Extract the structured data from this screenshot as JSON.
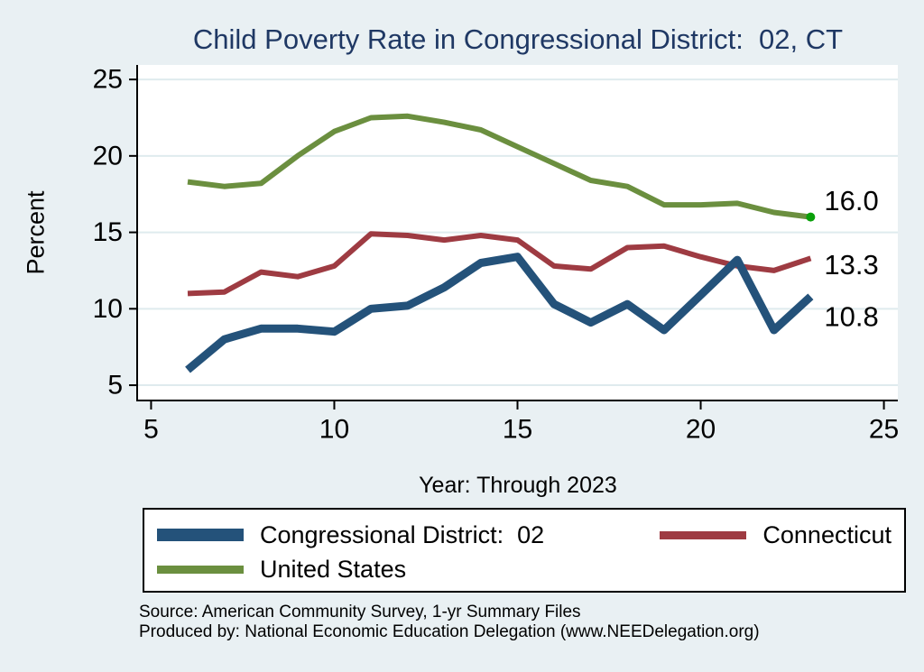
{
  "title": "Child Poverty Rate in Congressional District:  02, CT",
  "chart_data": {
    "type": "line",
    "title": "Child Poverty Rate in Congressional District:  02, CT",
    "xlabel": "Year: Through 2023",
    "ylabel": "Percent",
    "xlim": [
      4.62,
      25.38
    ],
    "ylim": [
      4.0,
      25.95
    ],
    "x_ticks": [
      5,
      10,
      15,
      20,
      25
    ],
    "y_ticks": [
      5,
      10,
      15,
      20,
      25
    ],
    "grid": true,
    "legend_position": "bottom",
    "x": [
      6,
      7,
      8,
      9,
      10,
      11,
      12,
      13,
      14,
      15,
      16,
      17,
      18,
      19,
      20,
      21,
      22,
      23
    ],
    "series": [
      {
        "name": "United States",
        "color": "#6B8F3F",
        "line_width": 6,
        "values": [
          18.3,
          18.0,
          18.2,
          20.0,
          21.6,
          22.5,
          22.6,
          22.2,
          21.7,
          20.6,
          19.5,
          18.4,
          18.0,
          16.8,
          16.8,
          16.9,
          16.3,
          16.0
        ],
        "end_label": "16.0",
        "end_dot_color": "#0AA00A"
      },
      {
        "name": "Connecticut",
        "color": "#9E3B42",
        "line_width": 6,
        "values": [
          11.0,
          11.1,
          12.4,
          12.1,
          12.8,
          14.9,
          14.8,
          14.5,
          14.8,
          14.5,
          12.8,
          12.6,
          14.0,
          14.1,
          13.4,
          12.8,
          12.5,
          13.3
        ],
        "end_label": "13.3"
      },
      {
        "name": "Congressional District:  02",
        "color": "#24527A",
        "line_width": 9,
        "values": [
          6.0,
          8.0,
          8.7,
          8.7,
          8.5,
          10.0,
          10.2,
          11.4,
          13.0,
          13.4,
          10.3,
          9.1,
          10.3,
          8.6,
          10.9,
          13.2,
          8.6,
          10.8
        ],
        "end_label": "10.8"
      }
    ]
  },
  "axis_titles": {
    "y": "Percent",
    "x": "Year: Through 2023"
  },
  "legend": {
    "items": [
      {
        "label": "Congressional District:  02",
        "color": "#24527A",
        "swatch_height": 14
      },
      {
        "label": "Connecticut",
        "color": "#9E3B42",
        "swatch_height": 9
      },
      {
        "label": "United States",
        "color": "#6B8F3F",
        "swatch_height": 9
      }
    ]
  },
  "source": {
    "line1": "Source: American Community Survey, 1-yr Summary Files",
    "line2": "Produced by: National Economic Education Delegation (www.NEEDelegation.org)"
  },
  "colors": {
    "background": "#E9F0F3",
    "plot_background": "#FFFFFF",
    "gridline": "#DFEBEE",
    "axis": "#000000",
    "title": "#1F3864"
  }
}
